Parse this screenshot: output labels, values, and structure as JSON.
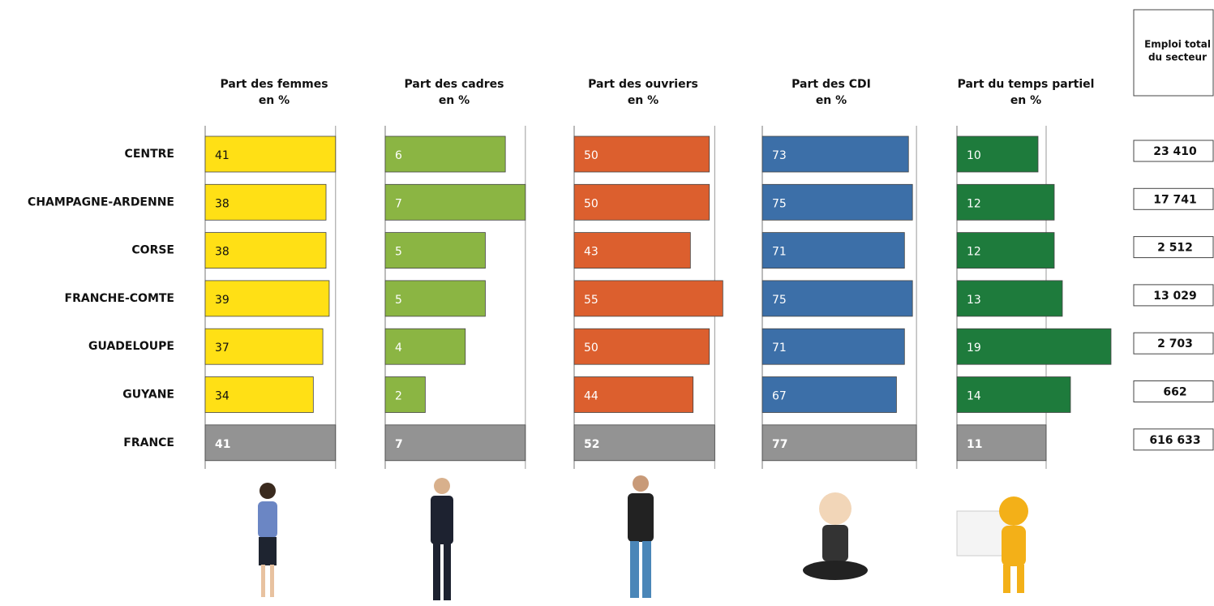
{
  "chart_data": {
    "type": "bar",
    "orientation": "horizontal",
    "categories": [
      "CENTRE",
      "CHAMPAGNE-ARDENNE",
      "CORSE",
      "FRANCHE-COMTE",
      "GUADELOUPE",
      "GUYANE",
      "FRANCE"
    ],
    "panels": [
      {
        "title": [
          "Part des femmes",
          "en %"
        ],
        "xlim": [
          0,
          51
        ],
        "values": [
          41,
          38,
          38,
          39,
          37,
          34,
          41
        ],
        "colors": [
          "#ffe015",
          "#ffe015",
          "#ffe015",
          "#ffe015",
          "#ffe015",
          "#ffe015",
          "#939393"
        ],
        "label_colors": [
          "#111",
          "#111",
          "#111",
          "#111",
          "#111",
          "#111",
          "#fff"
        ]
      },
      {
        "title": [
          "Part des cadres",
          "en %"
        ],
        "xlim": [
          0,
          8.1
        ],
        "values": [
          6,
          7,
          5,
          5,
          4,
          2,
          7
        ],
        "colors": [
          "#8bb543",
          "#8bb543",
          "#8bb543",
          "#8bb543",
          "#8bb543",
          "#8bb543",
          "#939393"
        ],
        "label_colors": [
          "#fff",
          "#fff",
          "#fff",
          "#fff",
          "#fff",
          "#fff",
          "#fff"
        ]
      },
      {
        "title": [
          "Part des ouvriers",
          "en %"
        ],
        "xlim": [
          0,
          60
        ],
        "values": [
          50,
          50,
          43,
          55,
          50,
          44,
          52
        ],
        "colors": [
          "#dc5f2e",
          "#dc5f2e",
          "#dc5f2e",
          "#dc5f2e",
          "#dc5f2e",
          "#dc5f2e",
          "#939393"
        ],
        "label_colors": [
          "#fff",
          "#fff",
          "#fff",
          "#fff",
          "#fff",
          "#fff",
          "#fff"
        ]
      },
      {
        "title": [
          "Part des CDI",
          "en %"
        ],
        "xlim": [
          0,
          81
        ],
        "values": [
          73,
          75,
          71,
          75,
          71,
          67,
          77
        ],
        "colors": [
          "#3c6fa8",
          "#3c6fa8",
          "#3c6fa8",
          "#3c6fa8",
          "#3c6fa8",
          "#3c6fa8",
          "#939393"
        ],
        "label_colors": [
          "#fff",
          "#fff",
          "#fff",
          "#fff",
          "#fff",
          "#fff",
          "#fff"
        ]
      },
      {
        "title": [
          "Part du temps partiel",
          "en %"
        ],
        "xlim": [
          0,
          20
        ],
        "values": [
          10,
          12,
          12,
          13,
          19,
          14,
          11
        ],
        "colors": [
          "#1e7b3c",
          "#1e7b3c",
          "#1e7b3c",
          "#1e7b3c",
          "#1e7b3c",
          "#1e7b3c",
          "#939393"
        ],
        "label_colors": [
          "#fff",
          "#fff",
          "#fff",
          "#fff",
          "#fff",
          "#fff",
          "#fff"
        ]
      }
    ],
    "table": {
      "title": [
        "Emploi total",
        "du secteur"
      ],
      "values": [
        "23 410",
        "17 741",
        "2 512",
        "13 029",
        "2 703",
        "662",
        "616 633"
      ]
    }
  }
}
